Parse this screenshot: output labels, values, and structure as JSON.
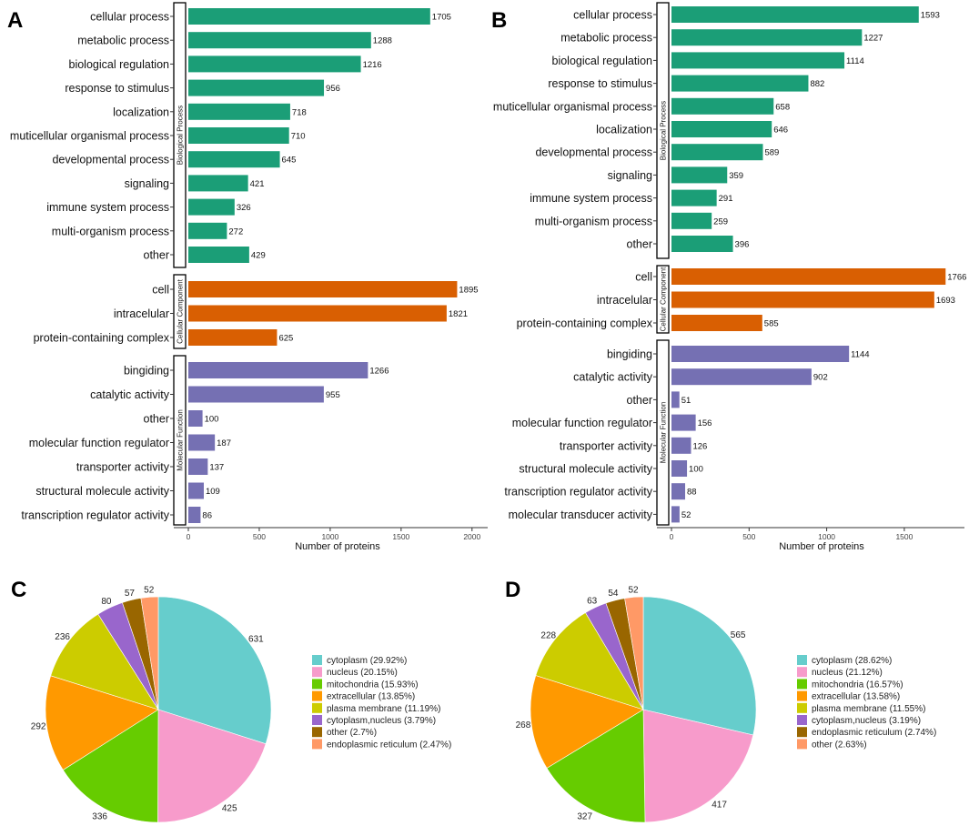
{
  "colors": {
    "biological_process": "#1b9e77",
    "cellular_component": "#d95f02",
    "molecular_function": "#7570b3",
    "axis": "#333333",
    "pie_colors": [
      "#66cdcc",
      "#f79bcb",
      "#66cc00",
      "#ff9900",
      "#cccc00",
      "#9966cc",
      "#996600",
      "#ff9966"
    ]
  },
  "chart_data": [
    {
      "panel": "A",
      "type": "bar",
      "orientation": "horizontal",
      "xlabel": "Number of proteins",
      "xlim": [
        0,
        2000
      ],
      "xticks": [
        "0",
        "500",
        "1000",
        "1500",
        "2000"
      ],
      "groups": [
        {
          "name": "Biological Process",
          "categories": [
            "cellular process",
            "metabolic process",
            "biological regulation",
            "response to stimulus",
            "localization",
            "muticellular organismal process",
            "developmental process",
            "signaling",
            "immune system process",
            "multi-organism process",
            "other"
          ],
          "values": [
            1705,
            1288,
            1216,
            956,
            718,
            710,
            645,
            421,
            326,
            272,
            429
          ]
        },
        {
          "name": "Cellular Component",
          "categories": [
            "cell",
            "intracelular",
            "protein-containing complex"
          ],
          "values": [
            1895,
            1821,
            625
          ]
        },
        {
          "name": "Molecular Function",
          "categories": [
            "bingiding",
            "catalytic activity",
            "other",
            "molecular function regulator",
            "transporter activity",
            "structural molecule activity",
            "transcription regulator activity"
          ],
          "values": [
            1266,
            955,
            100,
            187,
            137,
            109,
            86
          ]
        }
      ]
    },
    {
      "panel": "B",
      "type": "bar",
      "orientation": "horizontal",
      "xlabel": "Number of proteins",
      "xlim": [
        0,
        1800
      ],
      "xticks": [
        "0",
        "500",
        "1000",
        "1500"
      ],
      "groups": [
        {
          "name": "Biological Process",
          "categories": [
            "cellular process",
            "metabolic process",
            "biological regulation",
            "response to stimulus",
            "muticellular organismal process",
            "localization",
            "developmental process",
            "signaling",
            "immune system process",
            "multi-organism process",
            "other"
          ],
          "values": [
            1593,
            1227,
            1114,
            882,
            658,
            646,
            589,
            359,
            291,
            259,
            396
          ]
        },
        {
          "name": "Cellular Component",
          "categories": [
            "cell",
            "intracelular",
            "protein-containing complex"
          ],
          "values": [
            1766,
            1693,
            585
          ]
        },
        {
          "name": "Molecular Function",
          "categories": [
            "bingiding",
            "catalytic activity",
            "other",
            "molecular function regulator",
            "transporter activity",
            "structural molecule activity",
            "transcription regulator activity",
            "molecular transducer activity"
          ],
          "values": [
            1144,
            902,
            51,
            156,
            126,
            100,
            88,
            52
          ]
        }
      ]
    },
    {
      "panel": "C",
      "type": "pie",
      "labels": [
        "cytoplasm",
        "nucleus",
        "mitochondria",
        "extracellular",
        "plasma membrane",
        "cytoplasm,nucleus",
        "other",
        "endoplasmic reticulum"
      ],
      "values": [
        631,
        425,
        336,
        292,
        236,
        80,
        57,
        52
      ],
      "legend": [
        "cytoplasm (29.92%)",
        "nucleus (20.15%)",
        "mitochondria (15.93%)",
        "extracellular (13.85%)",
        "plasma membrane (11.19%)",
        "cytoplasm,nucleus (3.79%)",
        "other (2.7%)",
        "endoplasmic reticulum (2.47%)"
      ]
    },
    {
      "panel": "D",
      "type": "pie",
      "labels": [
        "cytoplasm",
        "nucleus",
        "mitochondria",
        "extracellular",
        "plasma membrane",
        "cytoplasm,nucleus",
        "endoplasmic reticulum",
        "other"
      ],
      "values": [
        565,
        417,
        327,
        268,
        228,
        63,
        54,
        52
      ],
      "legend": [
        "cytoplasm (28.62%)",
        "nucleus (21.12%)",
        "mitochondria (16.57%)",
        "extracellular (13.58%)",
        "plasma membrane (11.55%)",
        "cytoplasm,nucleus (3.19%)",
        "endoplasmic reticulum (2.74%)",
        "other (2.63%)"
      ]
    }
  ]
}
